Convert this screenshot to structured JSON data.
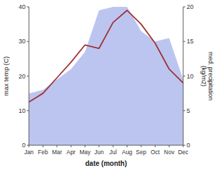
{
  "chart_data": {
    "type": "line",
    "categories": [
      "Jan",
      "Feb",
      "Mar",
      "Apr",
      "May",
      "Jun",
      "Jul",
      "Aug",
      "Sep",
      "Oct",
      "Nov",
      "Dec"
    ],
    "xlabel": "date (month)",
    "ylabel": "max temp (C)",
    "y2label": "med. precipitation\n(kg/m2)",
    "ylim": [
      0,
      40
    ],
    "yticks": [
      0,
      10,
      20,
      30,
      40
    ],
    "y2lim": [
      0,
      20
    ],
    "y2ticks": [
      0,
      5,
      10,
      15,
      20
    ],
    "grid": false,
    "series": [
      {
        "type": "area",
        "axis": "y2",
        "color": "#bcc5f0",
        "values": [
          7.5,
          8.0,
          9.5,
          11.0,
          13.5,
          19.5,
          20.0,
          20.0,
          16.5,
          15.0,
          15.5,
          9.5
        ]
      },
      {
        "type": "line",
        "color": "#a03030",
        "values": [
          12.5,
          15.0,
          19.5,
          24.0,
          29.0,
          28.0,
          35.5,
          39.0,
          35.0,
          29.5,
          22.0,
          18.0
        ]
      }
    ]
  }
}
